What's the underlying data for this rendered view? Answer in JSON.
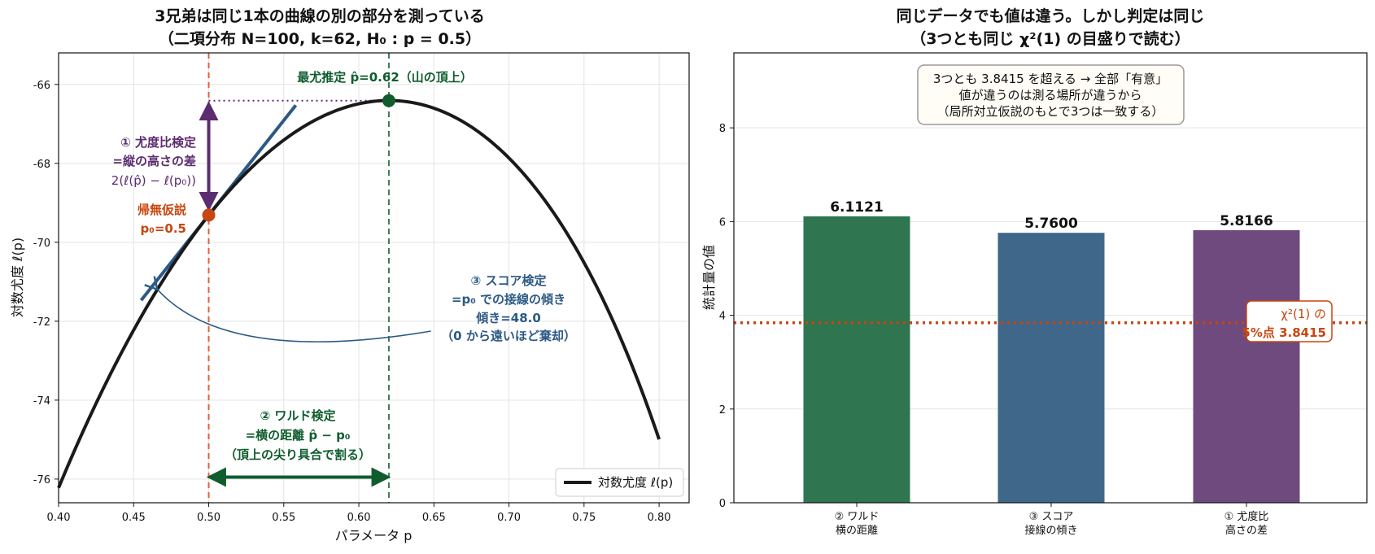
{
  "chart_data": [
    {
      "type": "line",
      "title": "3兄弟は同じ1本の曲線の別の部分を測っている",
      "subtitle": "（二項分布 N=100, k=62, H₀ : p = 0.5）",
      "xlabel": "パラメータ p",
      "ylabel": "対数尤度 ℓ(p)",
      "xlim": [
        0.4,
        0.82
      ],
      "ylim": [
        -76.6,
        -65.2
      ],
      "xticks": [
        "0.40",
        "0.45",
        "0.50",
        "0.55",
        "0.60",
        "0.65",
        "0.70",
        "0.75",
        "0.80"
      ],
      "yticks": [
        "-66",
        "-68",
        "-70",
        "-72",
        "-74",
        "-76"
      ],
      "grid": true,
      "legend": {
        "position": "bottom-right",
        "label": "対数尤度 ℓ(p)"
      },
      "series": [
        {
          "name": "対数尤度 ℓ(p)",
          "N": 100,
          "k": 62,
          "x_range": [
            0.4,
            0.8
          ],
          "color": "#1a1a1a"
        }
      ],
      "points": {
        "mle": {
          "x": 0.62,
          "y": -66.41,
          "label": "最尤推定 p̂=0.62（山の頂上）",
          "color": "#0f5c2e"
        },
        "null": {
          "x": 0.5,
          "y": -69.31,
          "label1": "帰無仮説",
          "label2": "p₀=0.5",
          "color": "#c8460f"
        }
      },
      "annotations": {
        "lr_line1": "① 尤度比検定",
        "lr_line2": "=縦の高さの差",
        "lr_line3": "2(ℓ(p̂) − ℓ(p₀))",
        "score_line1": "③ スコア検定",
        "score_line2": "=p₀ での接線の傾き",
        "score_line3": "傾き=48.0",
        "score_line4": "（0 から遠いほど棄却）",
        "wald_line1": "② ワルド検定",
        "wald_line2": "=横の距離 p̂ − p₀",
        "wald_line3": "（頂上の尖り具合で割る）"
      },
      "colors": {
        "lr": "#5b2c6f",
        "score": "#2c5985",
        "wald": "#0f5c2e",
        "null": "#c8460f"
      }
    },
    {
      "type": "bar",
      "title": "同じデータでも値は違う。しかし判定は同じ",
      "subtitle": "（3つとも同じ χ²(1) の目盛りで読む）",
      "xlabel": "",
      "ylabel": "統計量の値",
      "ylim": [
        0,
        9.6
      ],
      "yticks": [
        "0",
        "2",
        "4",
        "6",
        "8"
      ],
      "grid": true,
      "categories": [
        {
          "line1": "② ワルド",
          "line2": "横の距離"
        },
        {
          "line1": "③ スコア",
          "line2": "接線の傾き"
        },
        {
          "line1": "① 尤度比",
          "line2": "高さの差"
        }
      ],
      "values": [
        6.1121,
        5.76,
        5.8166
      ],
      "value_labels": [
        "6.1121",
        "5.7600",
        "5.8166"
      ],
      "bar_colors": [
        "#2e7550",
        "#3f6789",
        "#6e4a7e"
      ],
      "threshold": {
        "value": 3.8415,
        "label1": "χ²(1) の",
        "label2": "5%点 3.8415",
        "color": "#c8460f"
      },
      "info_box": [
        "3つとも 3.8415 を超える → 全部「有意」",
        "値が違うのは測る場所が違うから",
        "（局所対立仮説のもとで3つは一致する）"
      ]
    }
  ]
}
